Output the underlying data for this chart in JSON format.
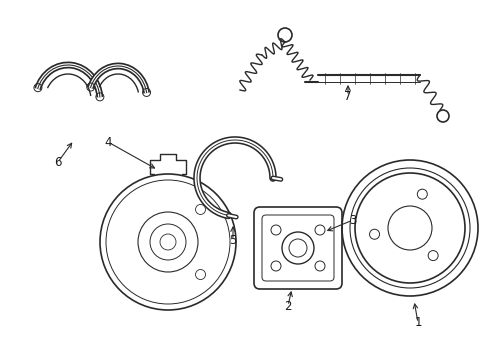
{
  "bg_color": "#ffffff",
  "line_color": "#2a2a2a",
  "text_color": "#1a1a1a",
  "figsize": [
    4.89,
    3.6
  ],
  "dpi": 100
}
